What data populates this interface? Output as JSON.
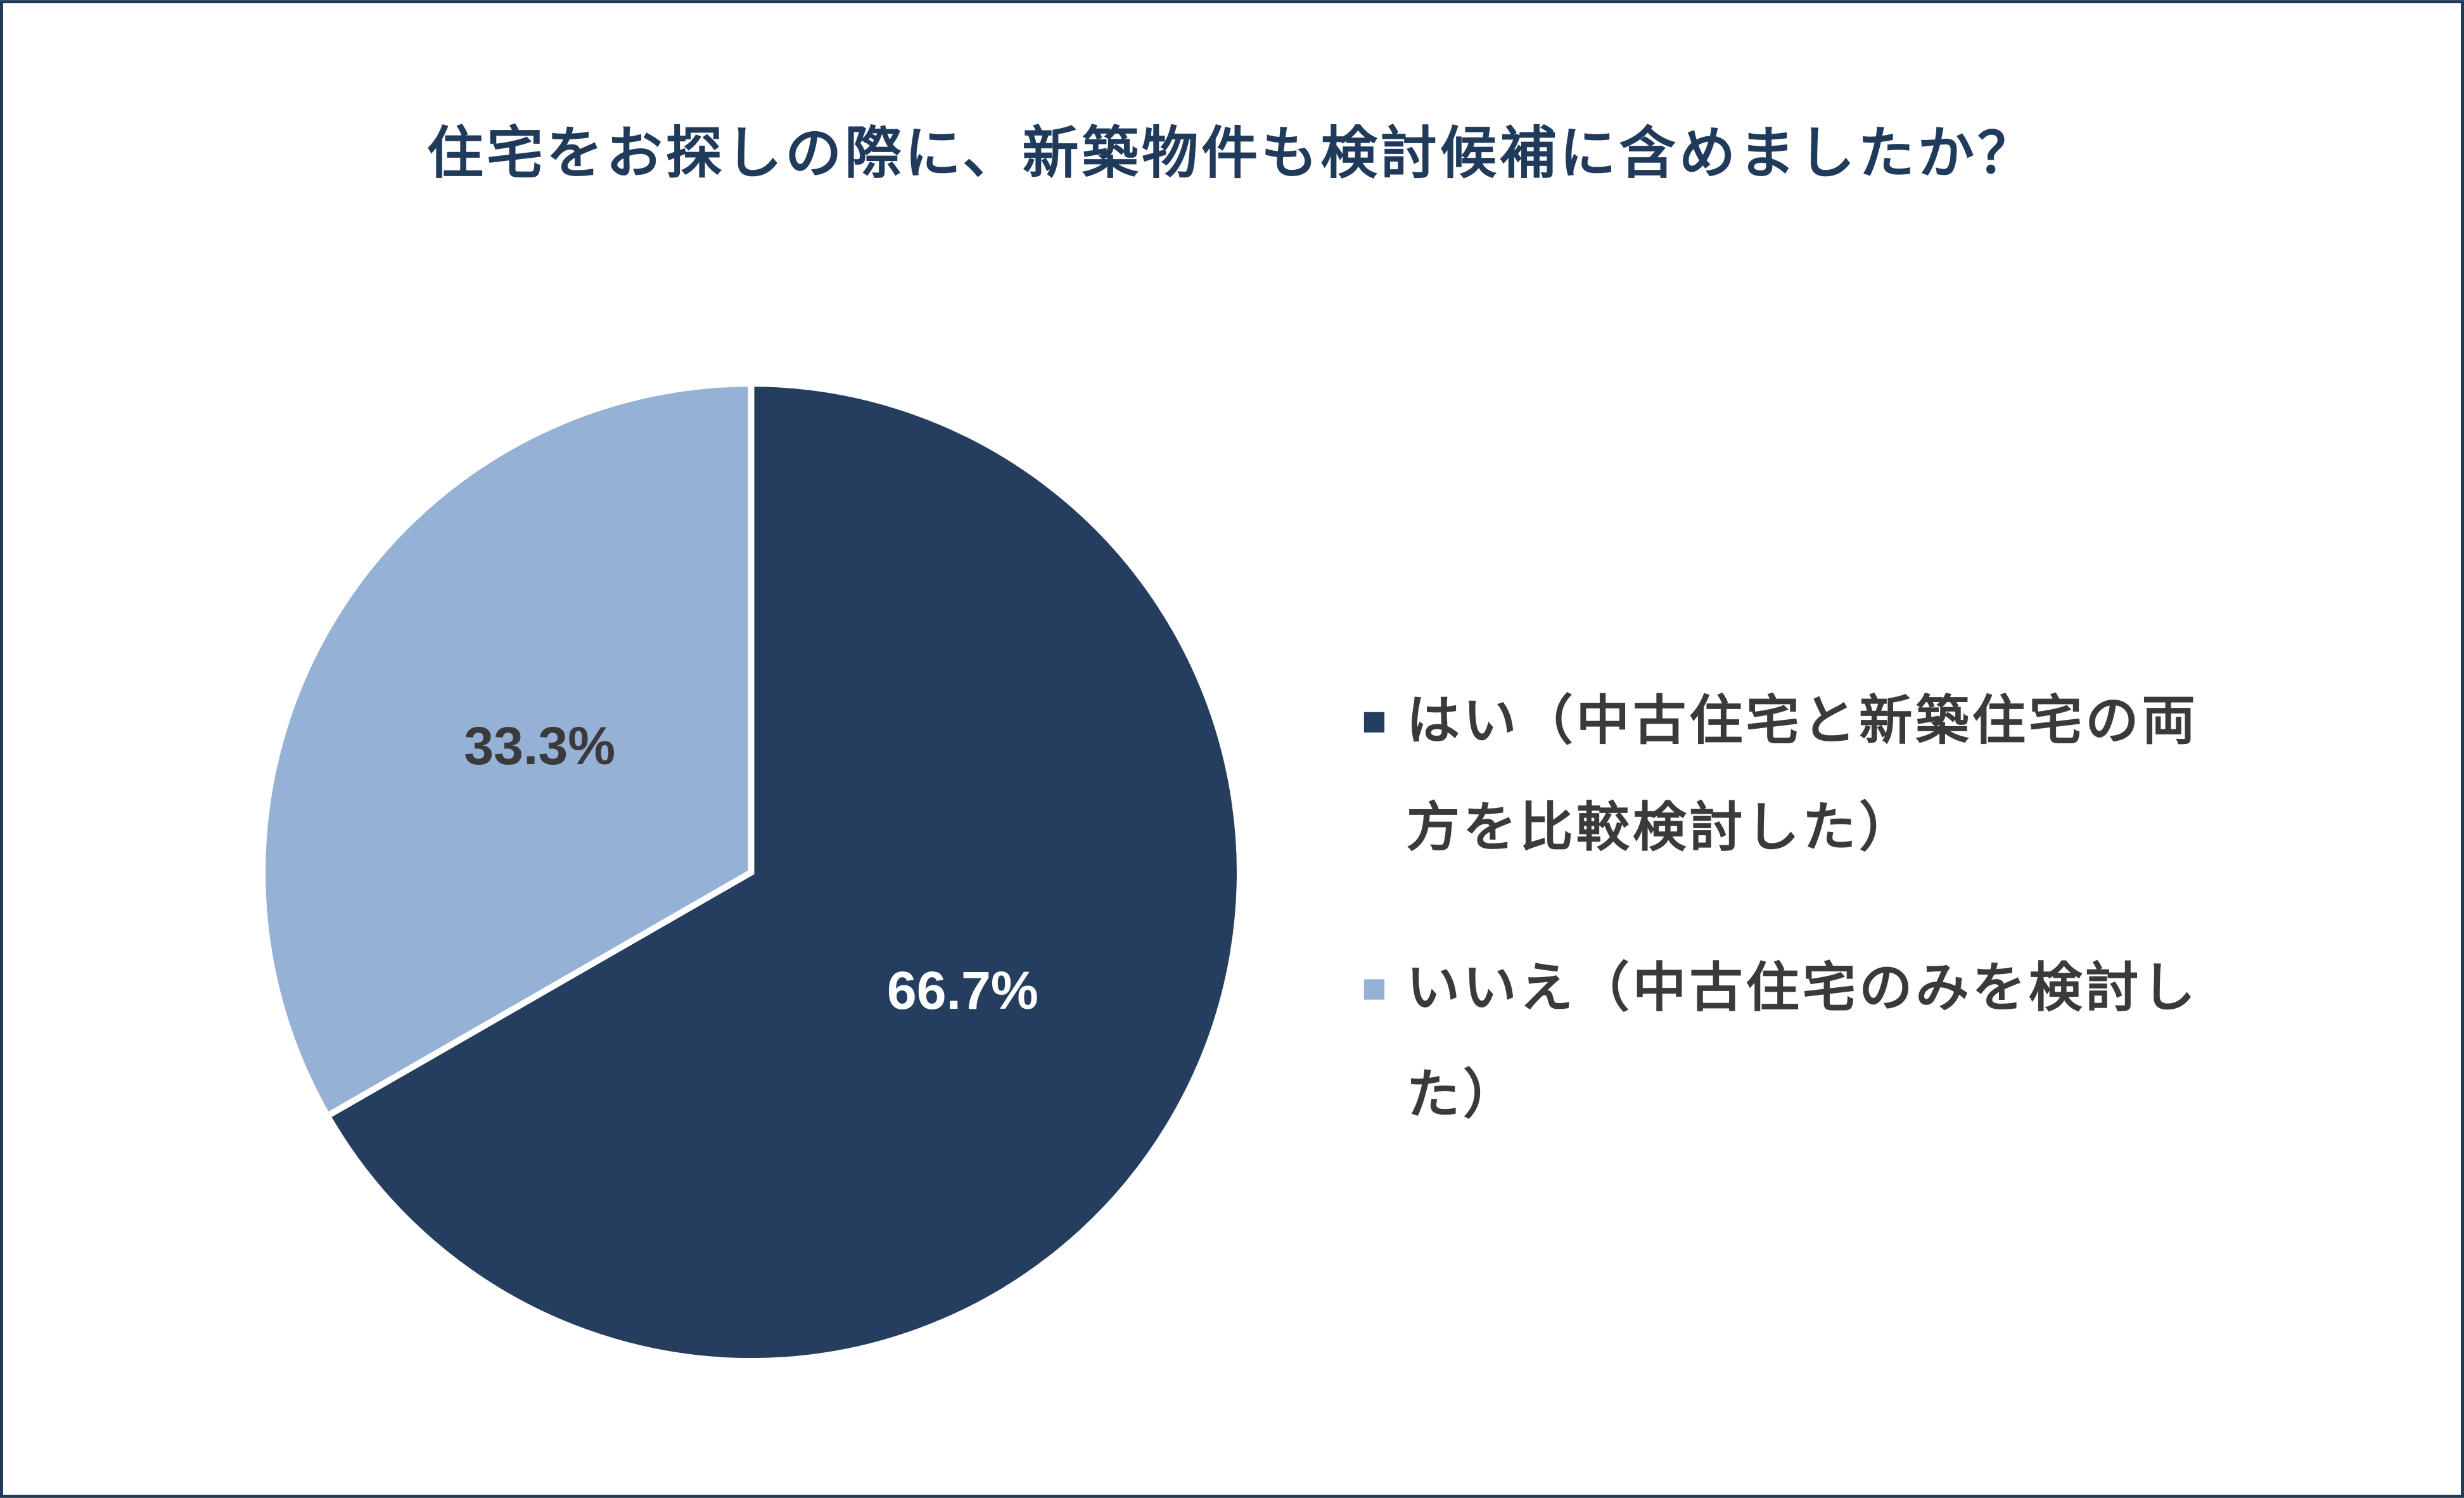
{
  "chart_data": {
    "type": "pie",
    "title": "住宅をお探しの際に、新築物件も検討候補に含めましたか？",
    "categories": [
      "はい（中古住宅と新築住宅の両方を比較検討した）",
      "いいえ（中古住宅のみを検討した）"
    ],
    "values": [
      66.7,
      33.3
    ],
    "value_labels": [
      "66.7%",
      "33.3%"
    ],
    "colors": [
      "#253d5e",
      "#95b1d6"
    ],
    "label_colors": [
      "#ffffff",
      "#3a3a3a"
    ],
    "legend": "right"
  }
}
